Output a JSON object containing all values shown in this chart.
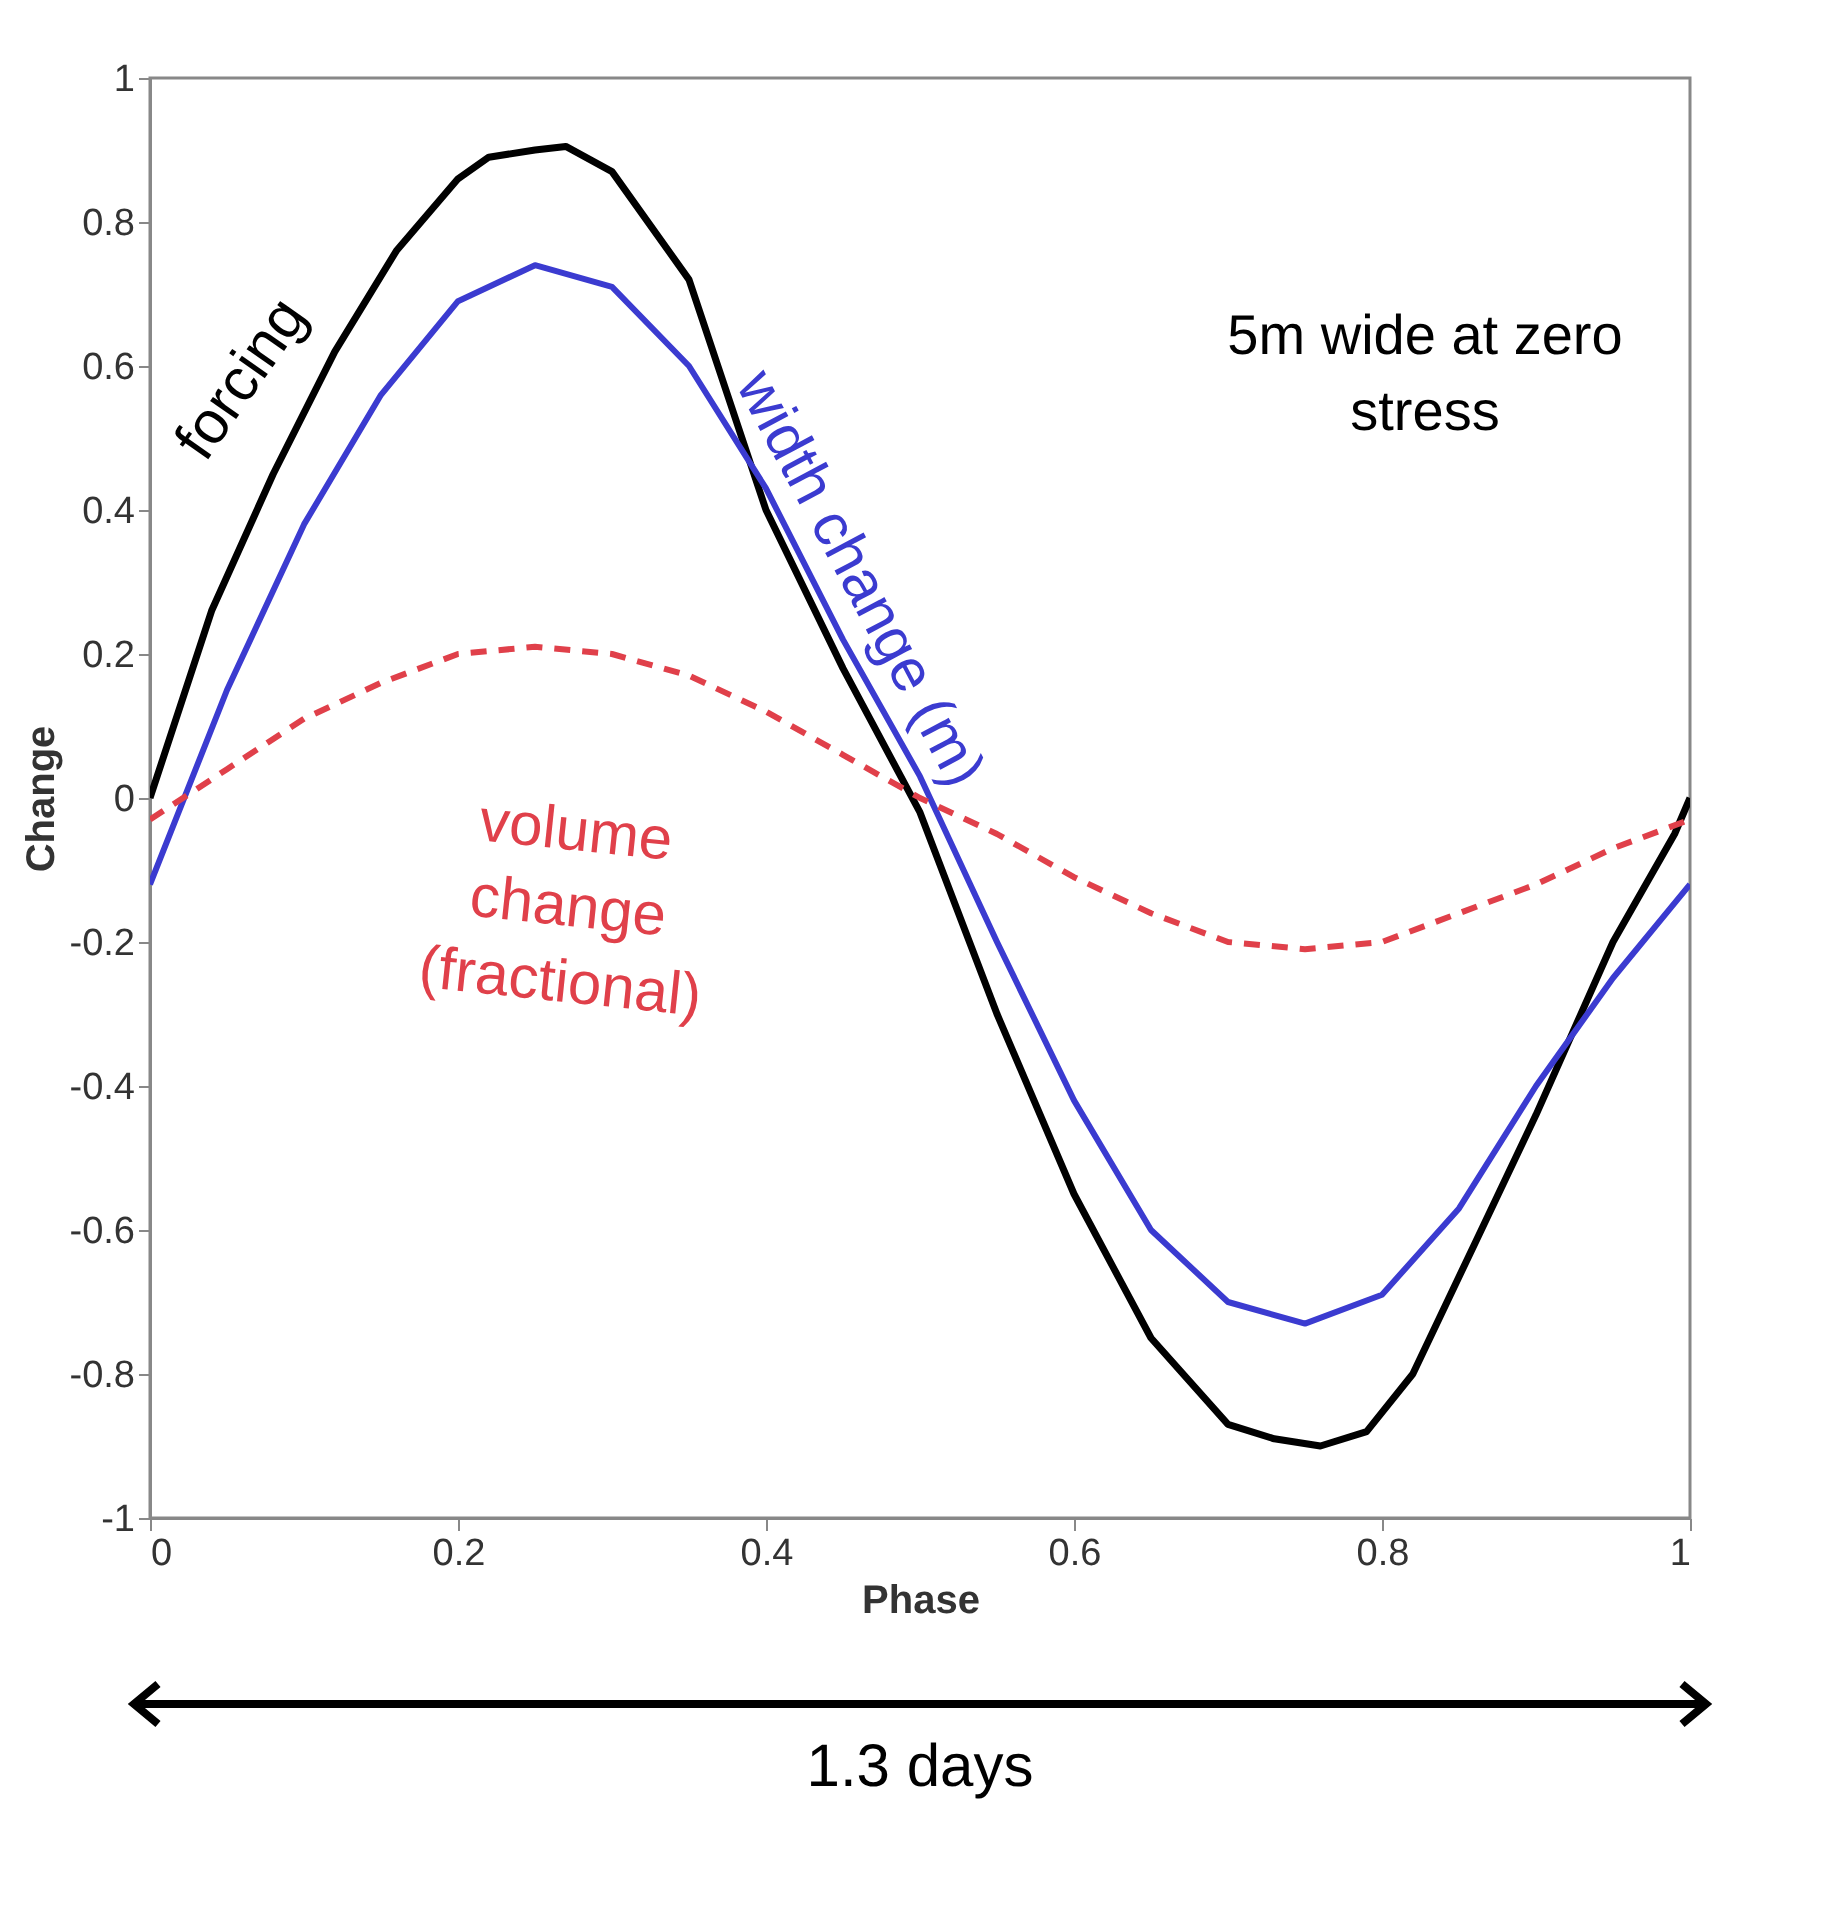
{
  "chart_data": {
    "type": "line",
    "xlabel": "Phase",
    "ylabel": "Change",
    "xlim": [
      0,
      1
    ],
    "ylim": [
      -1,
      1
    ],
    "xticks": [
      0,
      0.2,
      0.4,
      0.6,
      0.8,
      1
    ],
    "yticks": [
      -1,
      -0.8,
      -0.6,
      -0.4,
      -0.2,
      0,
      0.2,
      0.4,
      0.6,
      0.8,
      1
    ],
    "grid": false,
    "legend": false,
    "annotations": [
      "5m wide at zero stress",
      "1.3 days"
    ],
    "series": [
      {
        "name": "forcing",
        "color": "#000000",
        "line_style": "solid",
        "x": [
          0,
          0.04,
          0.08,
          0.12,
          0.16,
          0.2,
          0.22,
          0.25,
          0.27,
          0.3,
          0.35,
          0.4,
          0.45,
          0.5,
          0.55,
          0.6,
          0.65,
          0.7,
          0.73,
          0.76,
          0.79,
          0.82,
          0.86,
          0.9,
          0.95,
          0.99,
          1
        ],
        "values": [
          0,
          0.26,
          0.45,
          0.62,
          0.76,
          0.86,
          0.89,
          0.9,
          0.905,
          0.87,
          0.72,
          0.4,
          0.18,
          -0.02,
          -0.3,
          -0.55,
          -0.75,
          -0.87,
          -0.89,
          -0.9,
          -0.88,
          -0.8,
          -0.62,
          -0.44,
          -0.2,
          -0.05,
          0
        ]
      },
      {
        "name": "width change (m)",
        "color": "#3b3bd0",
        "line_style": "solid",
        "x": [
          0,
          0.05,
          0.1,
          0.15,
          0.2,
          0.25,
          0.3,
          0.35,
          0.4,
          0.45,
          0.5,
          0.55,
          0.6,
          0.65,
          0.7,
          0.75,
          0.8,
          0.85,
          0.9,
          0.95,
          1
        ],
        "values": [
          -0.12,
          0.15,
          0.38,
          0.56,
          0.69,
          0.74,
          0.71,
          0.6,
          0.43,
          0.22,
          0.03,
          -0.2,
          -0.42,
          -0.6,
          -0.7,
          -0.73,
          -0.69,
          -0.57,
          -0.4,
          -0.25,
          -0.12
        ]
      },
      {
        "name": "volume change (fractional)",
        "color": "#e0404a",
        "line_style": "dashed",
        "x": [
          0,
          0.05,
          0.1,
          0.15,
          0.2,
          0.25,
          0.3,
          0.35,
          0.4,
          0.45,
          0.5,
          0.55,
          0.6,
          0.65,
          0.7,
          0.75,
          0.8,
          0.85,
          0.9,
          0.95,
          1
        ],
        "values": [
          -0.03,
          0.04,
          0.11,
          0.16,
          0.2,
          0.21,
          0.2,
          0.17,
          0.12,
          0.06,
          0.0,
          -0.05,
          -0.11,
          -0.16,
          -0.2,
          -0.21,
          -0.2,
          -0.16,
          -0.12,
          -0.07,
          -0.03
        ]
      }
    ]
  }
}
